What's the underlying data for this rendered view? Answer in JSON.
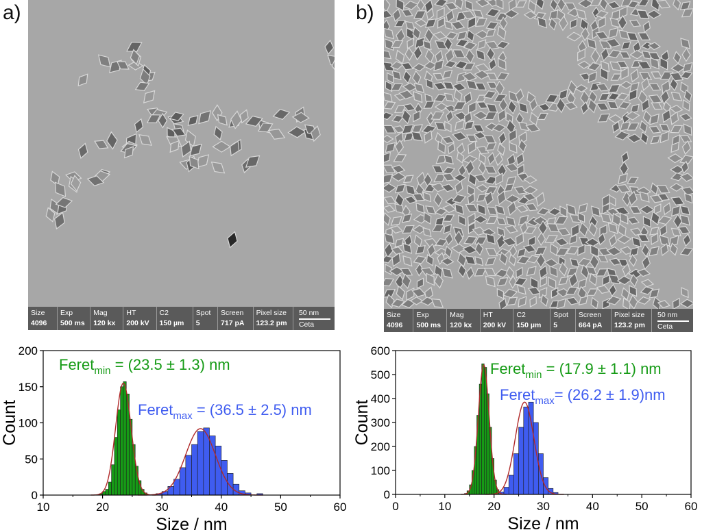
{
  "panels": [
    {
      "letter": "a)",
      "info": {
        "labels": [
          "Size",
          "Exp",
          "Mag",
          "HT",
          "C2",
          "Spot",
          "Screen",
          "Pixel size"
        ],
        "values": [
          "4096",
          "500 ms",
          "120 kx",
          "200 kV",
          "150 µm",
          "5",
          "717 pA",
          "123.2 pm"
        ],
        "scale_label": "50 nm",
        "camera": "Ceta"
      }
    },
    {
      "letter": "b)",
      "info": {
        "labels": [
          "Size",
          "Exp",
          "Mag",
          "HT",
          "C2",
          "Spot",
          "Screen",
          "Pixel size"
        ],
        "values": [
          "4096",
          "500 ms",
          "120 kx",
          "200 kV",
          "150 µm",
          "5",
          "664 pA",
          "123.2 pm"
        ],
        "scale_label": "50 nm",
        "camera": "Ceta"
      }
    }
  ],
  "chart_data": [
    {
      "type": "bar",
      "xlabel": "Size / nm",
      "ylabel": "Count",
      "xlim": [
        10,
        60
      ],
      "ylim": [
        0,
        200
      ],
      "xticks": [
        10,
        20,
        30,
        40,
        50,
        60
      ],
      "yticks": [
        0,
        50,
        100,
        150,
        200
      ],
      "colors": {
        "min": "#169b16",
        "max": "#3f5cf0",
        "fit": "#b02a2a"
      },
      "annotations": {
        "min": {
          "base": "Feret",
          "sub": "min",
          "text": " = (23.5 ± 1.3) nm"
        },
        "max": {
          "base": "Feret",
          "sub": "max",
          "text": " = (36.5 ± 2.5) nm"
        }
      },
      "series": [
        {
          "key": "min",
          "bin_width": 0.5,
          "bins": [
            19.5,
            20,
            20.5,
            21,
            21.5,
            22,
            22.5,
            23,
            23.5,
            24,
            24.5,
            25,
            25.5,
            26,
            26.5,
            27
          ],
          "values": [
            2,
            5,
            8,
            18,
            42,
            80,
            118,
            150,
            157,
            140,
            105,
            70,
            40,
            20,
            8,
            3
          ],
          "fit": {
            "mu": 23.5,
            "sigma": 1.3,
            "amp": 155
          }
        },
        {
          "key": "max",
          "bin_width": 1,
          "bins": [
            29,
            30,
            31,
            32,
            33,
            34,
            35,
            36,
            37,
            38,
            39,
            40,
            41,
            42,
            43,
            44,
            46
          ],
          "values": [
            2,
            5,
            12,
            22,
            38,
            55,
            70,
            88,
            93,
            82,
            68,
            48,
            30,
            15,
            6,
            3,
            2
          ],
          "fit": {
            "mu": 36.5,
            "sigma": 2.5,
            "amp": 92
          }
        }
      ]
    },
    {
      "type": "bar",
      "xlabel": "Size / nm",
      "ylabel": "Count",
      "xlim": [
        0,
        60
      ],
      "ylim": [
        0,
        600
      ],
      "xticks": [
        0,
        10,
        20,
        30,
        40,
        50,
        60
      ],
      "yticks": [
        0,
        100,
        200,
        300,
        400,
        500,
        600
      ],
      "colors": {
        "min": "#169b16",
        "max": "#3f5cf0",
        "fit": "#b02a2a"
      },
      "annotations": {
        "min": {
          "base": "Feret",
          "sub": "min",
          "text": " = (17.9 ± 1.1) nm"
        },
        "max": {
          "base": "Feret",
          "sub": "max",
          "text": "= (26.2 ± 1.9)nm"
        }
      },
      "series": [
        {
          "key": "min",
          "bin_width": 0.5,
          "bins": [
            14,
            14.5,
            15,
            15.5,
            16,
            16.5,
            17,
            17.5,
            18,
            18.5,
            19,
            19.5,
            20,
            20.5,
            21
          ],
          "values": [
            4,
            15,
            40,
            100,
            200,
            330,
            460,
            545,
            530,
            420,
            280,
            150,
            60,
            20,
            5
          ],
          "fit": {
            "mu": 17.9,
            "sigma": 1.1,
            "amp": 540
          }
        },
        {
          "key": "max",
          "bin_width": 1,
          "bins": [
            21,
            22,
            23,
            24,
            25,
            26,
            27,
            28,
            29,
            30,
            31,
            32
          ],
          "values": [
            10,
            30,
            80,
            170,
            280,
            365,
            385,
            300,
            170,
            70,
            25,
            8
          ],
          "fit": {
            "mu": 26.2,
            "sigma": 1.9,
            "amp": 385
          }
        }
      ]
    }
  ]
}
